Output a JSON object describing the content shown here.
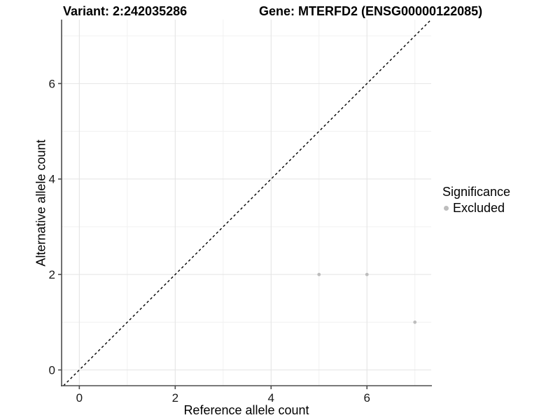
{
  "chart_data": {
    "type": "scatter",
    "variant_title": "Variant: 2:242035286",
    "gene_title": "Gene: MTERFD2 (ENSG00000122085)",
    "xlabel": "Reference allele count",
    "ylabel": "Alternative allele count",
    "xlim": [
      -0.37,
      7.34
    ],
    "ylim": [
      -0.33,
      7.34
    ],
    "x_ticks": [
      0,
      2,
      4,
      6
    ],
    "y_ticks": [
      0,
      2,
      4,
      6
    ],
    "x_minor_breaks": [
      1,
      3,
      5,
      7
    ],
    "y_minor_breaks": [
      1,
      3,
      5,
      7
    ],
    "grid": true,
    "series": [
      {
        "name": "Excluded",
        "color": "#bdbdbd",
        "points": [
          {
            "x": 5,
            "y": 2
          },
          {
            "x": 6,
            "y": 2
          },
          {
            "x": 7,
            "y": 1
          }
        ]
      }
    ],
    "reference_line": {
      "slope": 1,
      "intercept": 0,
      "style": "dashed",
      "color": "#000000"
    },
    "legend": {
      "title": "Significance",
      "position": "right",
      "entries": [
        {
          "label": "Excluded",
          "color": "#bdbdbd"
        }
      ]
    }
  },
  "colors": {
    "background": "#ffffff",
    "grid_major": "#e4e4e4",
    "grid_minor": "#f1f1f1",
    "axis_line": "#4d4d4d",
    "tick_mark": "#4d4d4d",
    "tick_text": "#1a1a1a",
    "point": "#bdbdbd",
    "reference_line": "#000000",
    "title_text": "#000000"
  }
}
